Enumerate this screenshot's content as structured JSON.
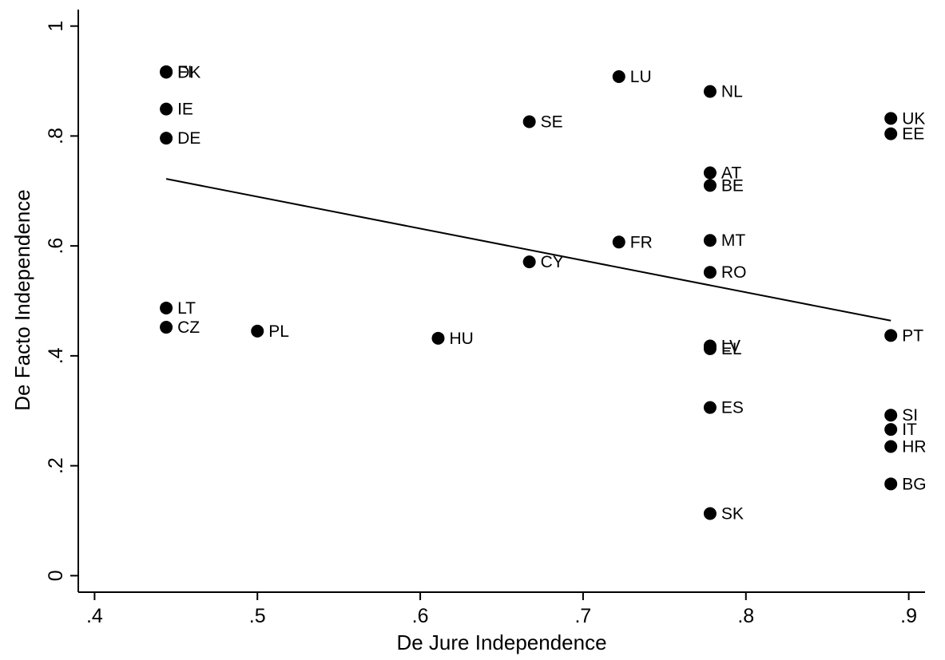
{
  "chart_data": {
    "type": "scatter",
    "xlabel": "De Jure Independence",
    "ylabel": "De Facto Independence",
    "xlim": [
      0.39,
      0.91
    ],
    "ylim": [
      -0.03,
      1.03
    ],
    "x_ticks": [
      0.4,
      0.5,
      0.6,
      0.7,
      0.8,
      0.9
    ],
    "x_tick_labels": [
      ".4",
      ".5",
      ".6",
      ".7",
      ".8",
      ".9"
    ],
    "y_ticks": [
      0,
      0.2,
      0.4,
      0.6,
      0.8,
      1
    ],
    "y_tick_labels": [
      "0",
      ".2",
      ".4",
      ".6",
      ".8",
      "1"
    ],
    "grid": false,
    "legend": "none",
    "colors": {
      "marker": "#000000",
      "line": "#000000"
    },
    "fit_line": {
      "x": [
        0.444,
        0.889
      ],
      "y": [
        0.722,
        0.464
      ]
    },
    "points": [
      {
        "label": "FI",
        "x": 0.444,
        "y": 0.917
      },
      {
        "label": "DK",
        "x": 0.444,
        "y": 0.916
      },
      {
        "label": "IE",
        "x": 0.444,
        "y": 0.849
      },
      {
        "label": "DE",
        "x": 0.444,
        "y": 0.796
      },
      {
        "label": "LT",
        "x": 0.444,
        "y": 0.487
      },
      {
        "label": "CZ",
        "x": 0.444,
        "y": 0.452
      },
      {
        "label": "PL",
        "x": 0.5,
        "y": 0.445
      },
      {
        "label": "HU",
        "x": 0.611,
        "y": 0.432
      },
      {
        "label": "SE",
        "x": 0.667,
        "y": 0.826
      },
      {
        "label": "CY",
        "x": 0.667,
        "y": 0.571
      },
      {
        "label": "LU",
        "x": 0.722,
        "y": 0.908
      },
      {
        "label": "FR",
        "x": 0.722,
        "y": 0.607
      },
      {
        "label": "NL",
        "x": 0.778,
        "y": 0.881
      },
      {
        "label": "AT",
        "x": 0.778,
        "y": 0.733
      },
      {
        "label": "BE",
        "x": 0.778,
        "y": 0.71
      },
      {
        "label": "MT",
        "x": 0.778,
        "y": 0.61
      },
      {
        "label": "RO",
        "x": 0.778,
        "y": 0.552
      },
      {
        "label": "LV",
        "x": 0.778,
        "y": 0.418
      },
      {
        "label": "EL",
        "x": 0.778,
        "y": 0.413
      },
      {
        "label": "ES",
        "x": 0.778,
        "y": 0.306
      },
      {
        "label": "SK",
        "x": 0.778,
        "y": 0.113
      },
      {
        "label": "UK",
        "x": 0.889,
        "y": 0.832
      },
      {
        "label": "EE",
        "x": 0.889,
        "y": 0.804
      },
      {
        "label": "PT",
        "x": 0.889,
        "y": 0.437
      },
      {
        "label": "SI",
        "x": 0.889,
        "y": 0.292
      },
      {
        "label": "IT",
        "x": 0.889,
        "y": 0.266
      },
      {
        "label": "HR",
        "x": 0.889,
        "y": 0.235
      },
      {
        "label": "BG",
        "x": 0.889,
        "y": 0.167
      }
    ]
  }
}
